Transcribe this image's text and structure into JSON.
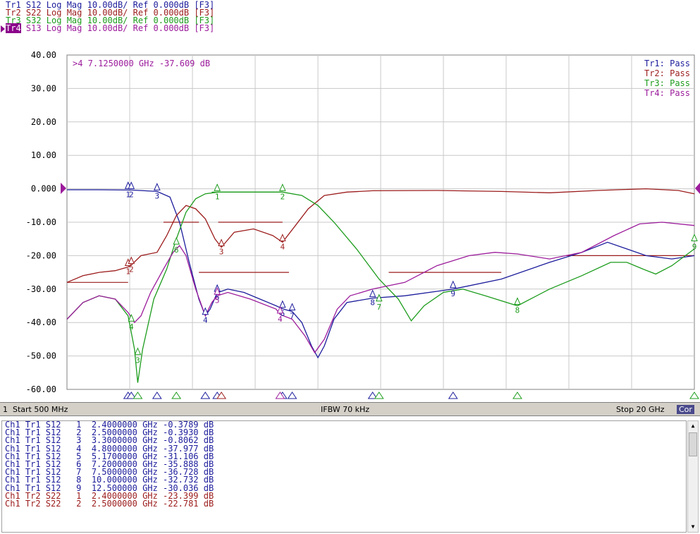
{
  "header": {
    "traces": [
      {
        "label": "Tr1",
        "param": "S12",
        "text": " S12 Log Mag 10.00dB/ Ref 0.000dB [F3]",
        "color": "#1c1c9c"
      },
      {
        "label": "Tr2",
        "param": "S22",
        "text": " S22 Log Mag 10.00dB/ Ref 0.000dB [F3]",
        "color": "#9c1c1c"
      },
      {
        "label": "Tr3",
        "param": "S32",
        "text": " S32 Log Mag 10.00dB/ Ref 0.000dB [F3]",
        "color": "#1c9c1c"
      },
      {
        "label": "Tr4",
        "param": "S13",
        "text": " S13 Log Mag 10.00dB/ Ref 0.000dB [F3]",
        "color": "#9c1c9c"
      }
    ]
  },
  "active_marker_readout": ">4  7.1250000 GHz -37.609 dB",
  "pass_labels": [
    "Tr1: Pass",
    "Tr2: Pass",
    "Tr3: Pass",
    "Tr4: Pass"
  ],
  "status_bar": {
    "channel": "1",
    "start": "Start 500 MHz",
    "ifbw": "IFBW 70 kHz",
    "stop": "Stop 20 GHz",
    "cor": "Cor"
  },
  "marker_table": [
    "Ch1 Tr1 S12   1  2.4000000 GHz -0.3789 dB",
    "Ch1 Tr1 S12   2  2.5000000 GHz -0.3930 dB",
    "Ch1 Tr1 S12   3  3.3000000 GHz -0.8062 dB",
    "Ch1 Tr1 S12   4  4.8000000 GHz -37.977 dB",
    "Ch1 Tr1 S12   5  5.1700000 GHz -31.106 dB",
    "Ch1 Tr1 S12   6  7.2000000 GHz -35.888 dB",
    "Ch1 Tr1 S12   7  7.5000000 GHz -36.728 dB",
    "Ch1 Tr1 S12   8  10.000000 GHz -32.732 dB",
    "Ch1 Tr1 S12   9  12.500000 GHz -30.036 dB",
    "Ch1 Tr2 S22   1  2.4000000 GHz -23.399 dB",
    "Ch1 Tr2 S22   2  2.5000000 GHz -22.781 dB"
  ],
  "marker_table_colors": [
    "#1c1c9c",
    "#1c1c9c",
    "#1c1c9c",
    "#1c1c9c",
    "#1c1c9c",
    "#1c1c9c",
    "#1c1c9c",
    "#1c1c9c",
    "#1c1c9c",
    "#9c1c1c",
    "#9c1c1c"
  ],
  "chart_data": {
    "type": "line",
    "xlim": [
      0.5,
      20
    ],
    "ylim": [
      -60,
      40
    ],
    "x_unit": "GHz",
    "y_unit": "dB",
    "yticks": [
      "40.00",
      "30.00",
      "20.00",
      "10.00",
      "0.000",
      "-10.00",
      "-20.00",
      "-30.00",
      "-40.00",
      "-50.00",
      "-60.00"
    ],
    "ytick_values": [
      40,
      30,
      20,
      10,
      0,
      -10,
      -20,
      -30,
      -40,
      -50,
      -60
    ],
    "grid": true,
    "series": [
      {
        "name": "Tr1",
        "color": "#1c1c9c",
        "points": [
          [
            0.5,
            -0.3
          ],
          [
            1.5,
            -0.3
          ],
          [
            2.4,
            -0.38
          ],
          [
            2.5,
            -0.39
          ],
          [
            3.3,
            -0.8
          ],
          [
            3.7,
            -2.5
          ],
          [
            4.0,
            -10
          ],
          [
            4.3,
            -22
          ],
          [
            4.6,
            -33
          ],
          [
            4.8,
            -38
          ],
          [
            4.95,
            -36
          ],
          [
            5.17,
            -31.1
          ],
          [
            5.5,
            -30
          ],
          [
            6.0,
            -31
          ],
          [
            6.5,
            -33
          ],
          [
            7.0,
            -35
          ],
          [
            7.2,
            -35.9
          ],
          [
            7.5,
            -36.7
          ],
          [
            7.8,
            -40
          ],
          [
            8.1,
            -47
          ],
          [
            8.3,
            -50.5
          ],
          [
            8.5,
            -47
          ],
          [
            8.8,
            -39
          ],
          [
            9.2,
            -34
          ],
          [
            10.0,
            -32.7
          ],
          [
            11.0,
            -32
          ],
          [
            12.5,
            -30
          ],
          [
            14.0,
            -27
          ],
          [
            15.5,
            -22
          ],
          [
            16.5,
            -19
          ],
          [
            17.3,
            -16
          ],
          [
            17.9,
            -18
          ],
          [
            18.5,
            -20
          ],
          [
            19.3,
            -21
          ],
          [
            20.0,
            -20
          ]
        ]
      },
      {
        "name": "Tr2",
        "color": "#9c1c1c",
        "points": [
          [
            0.5,
            -28
          ],
          [
            1.0,
            -26
          ],
          [
            1.5,
            -25
          ],
          [
            2.0,
            -24.5
          ],
          [
            2.4,
            -23.4
          ],
          [
            2.5,
            -22.8
          ],
          [
            2.8,
            -20
          ],
          [
            3.3,
            -19
          ],
          [
            3.6,
            -14
          ],
          [
            3.9,
            -8
          ],
          [
            4.2,
            -5
          ],
          [
            4.5,
            -6
          ],
          [
            4.8,
            -9
          ],
          [
            5.1,
            -15
          ],
          [
            5.3,
            -17.5
          ],
          [
            5.7,
            -13
          ],
          [
            6.3,
            -12
          ],
          [
            6.9,
            -14
          ],
          [
            7.2,
            -16
          ],
          [
            7.6,
            -11
          ],
          [
            8.0,
            -6
          ],
          [
            8.5,
            -2
          ],
          [
            9.2,
            -1
          ],
          [
            10.0,
            -0.6
          ],
          [
            12.0,
            -0.5
          ],
          [
            14.0,
            -0.8
          ],
          [
            15.5,
            -1.2
          ],
          [
            17.0,
            -0.5
          ],
          [
            18.5,
            0
          ],
          [
            19.5,
            -0.5
          ],
          [
            20.0,
            -1.5
          ]
        ]
      },
      {
        "name": "Tr3",
        "color": "#1c9c1c",
        "points": [
          [
            0.5,
            -39
          ],
          [
            1.0,
            -34
          ],
          [
            1.5,
            -32
          ],
          [
            2.0,
            -33
          ],
          [
            2.4,
            -38
          ],
          [
            2.6,
            -48
          ],
          [
            2.7,
            -58
          ],
          [
            2.85,
            -48
          ],
          [
            3.2,
            -33
          ],
          [
            3.6,
            -24
          ],
          [
            3.9,
            -15
          ],
          [
            4.2,
            -7
          ],
          [
            4.5,
            -3
          ],
          [
            4.8,
            -1.5
          ],
          [
            5.2,
            -1
          ],
          [
            6.0,
            -1
          ],
          [
            7.2,
            -1
          ],
          [
            7.8,
            -2
          ],
          [
            8.3,
            -5
          ],
          [
            8.8,
            -10
          ],
          [
            9.5,
            -18
          ],
          [
            10.2,
            -27
          ],
          [
            10.8,
            -33
          ],
          [
            11.2,
            -39.5
          ],
          [
            11.6,
            -35
          ],
          [
            12.2,
            -31
          ],
          [
            12.8,
            -30
          ],
          [
            13.5,
            -32
          ],
          [
            14.5,
            -35
          ],
          [
            15.5,
            -30
          ],
          [
            16.5,
            -26
          ],
          [
            17.4,
            -22
          ],
          [
            17.9,
            -22
          ],
          [
            18.4,
            -24
          ],
          [
            18.8,
            -25.5
          ],
          [
            19.3,
            -23
          ],
          [
            20.0,
            -18
          ]
        ]
      },
      {
        "name": "Tr4",
        "color": "#9c1c9c",
        "points": [
          [
            0.5,
            -39
          ],
          [
            1.0,
            -34
          ],
          [
            1.5,
            -32
          ],
          [
            2.0,
            -33
          ],
          [
            2.4,
            -37
          ],
          [
            2.6,
            -40
          ],
          [
            2.8,
            -38
          ],
          [
            3.1,
            -31
          ],
          [
            3.5,
            -24
          ],
          [
            3.8,
            -19
          ],
          [
            4.0,
            -17
          ],
          [
            4.2,
            -20
          ],
          [
            4.5,
            -30
          ],
          [
            4.8,
            -38
          ],
          [
            5.0,
            -34
          ],
          [
            5.17,
            -32
          ],
          [
            5.5,
            -31
          ],
          [
            6.2,
            -33
          ],
          [
            7.0,
            -36
          ],
          [
            7.125,
            -37.6
          ],
          [
            7.5,
            -39
          ],
          [
            7.9,
            -44
          ],
          [
            8.2,
            -49
          ],
          [
            8.5,
            -45
          ],
          [
            8.9,
            -36
          ],
          [
            9.3,
            -32
          ],
          [
            10.0,
            -30
          ],
          [
            11.0,
            -28
          ],
          [
            12.0,
            -23
          ],
          [
            13.0,
            -20
          ],
          [
            13.8,
            -19
          ],
          [
            14.5,
            -19.5
          ],
          [
            15.5,
            -21
          ],
          [
            16.5,
            -19
          ],
          [
            17.5,
            -14
          ],
          [
            18.3,
            -10.5
          ],
          [
            19.0,
            -10
          ],
          [
            20.0,
            -11
          ]
        ]
      }
    ],
    "limit_lines": [
      {
        "trace": "Tr2",
        "x": [
          0.5,
          2.4
        ],
        "y": -28
      },
      {
        "trace": "Tr2",
        "x": [
          3.5,
          4.6
        ],
        "y": -10
      },
      {
        "trace": "Tr2",
        "x": [
          5.2,
          7.2
        ],
        "y": -10
      },
      {
        "trace": "Tr2",
        "x": [
          4.6,
          7.4
        ],
        "y": -25
      },
      {
        "trace": "Tr2",
        "x": [
          10.5,
          14.0
        ],
        "y": -25
      },
      {
        "trace": "Tr2",
        "x": [
          16.0,
          20.0
        ],
        "y": -20
      },
      {
        "trace": "Tr3",
        "x": [
          5.0,
          7.2
        ],
        "y": -1
      }
    ],
    "markers": [
      {
        "trace": "Tr1",
        "n": "1",
        "x": 2.4,
        "y": -0.38
      },
      {
        "trace": "Tr1",
        "n": "2",
        "x": 2.5,
        "y": -0.39
      },
      {
        "trace": "Tr1",
        "n": "3",
        "x": 3.3,
        "y": -0.8
      },
      {
        "trace": "Tr1",
        "n": "4",
        "x": 4.8,
        "y": -38
      },
      {
        "trace": "Tr1",
        "n": "5",
        "x": 5.17,
        "y": -31.1
      },
      {
        "trace": "Tr1",
        "n": "6",
        "x": 7.2,
        "y": -35.9
      },
      {
        "trace": "Tr1",
        "n": "7",
        "x": 7.5,
        "y": -36.7
      },
      {
        "trace": "Tr1",
        "n": "8",
        "x": 10.0,
        "y": -32.7
      },
      {
        "trace": "Tr1",
        "n": "9",
        "x": 12.5,
        "y": -30
      },
      {
        "trace": "Tr2",
        "n": "1",
        "x": 2.4,
        "y": -23.4
      },
      {
        "trace": "Tr2",
        "n": "2",
        "x": 2.5,
        "y": -22.8
      },
      {
        "trace": "Tr2",
        "n": "3",
        "x": 5.3,
        "y": -17.5
      },
      {
        "trace": "Tr2",
        "n": "4",
        "x": 7.2,
        "y": -16
      },
      {
        "trace": "Tr3",
        "n": "1",
        "x": 5.17,
        "y": -1
      },
      {
        "trace": "Tr3",
        "n": "2",
        "x": 7.2,
        "y": -1
      },
      {
        "trace": "Tr3",
        "n": "3",
        "x": 2.7,
        "y": -50
      },
      {
        "trace": "Tr3",
        "n": "4",
        "x": 2.5,
        "y": -40
      },
      {
        "trace": "Tr3",
        "n": "6",
        "x": 3.9,
        "y": -17
      },
      {
        "trace": "Tr3",
        "n": "7",
        "x": 10.2,
        "y": -34
      },
      {
        "trace": "Tr3",
        "n": "8",
        "x": 14.5,
        "y": -35
      },
      {
        "trace": "Tr3",
        "n": "9",
        "x": 20.0,
        "y": -16
      },
      {
        "trace": "Tr4",
        "n": "4",
        "x": 7.125,
        "y": -37.6
      },
      {
        "trace": "Tr4",
        "n": "5",
        "x": 5.17,
        "y": -32
      }
    ]
  }
}
